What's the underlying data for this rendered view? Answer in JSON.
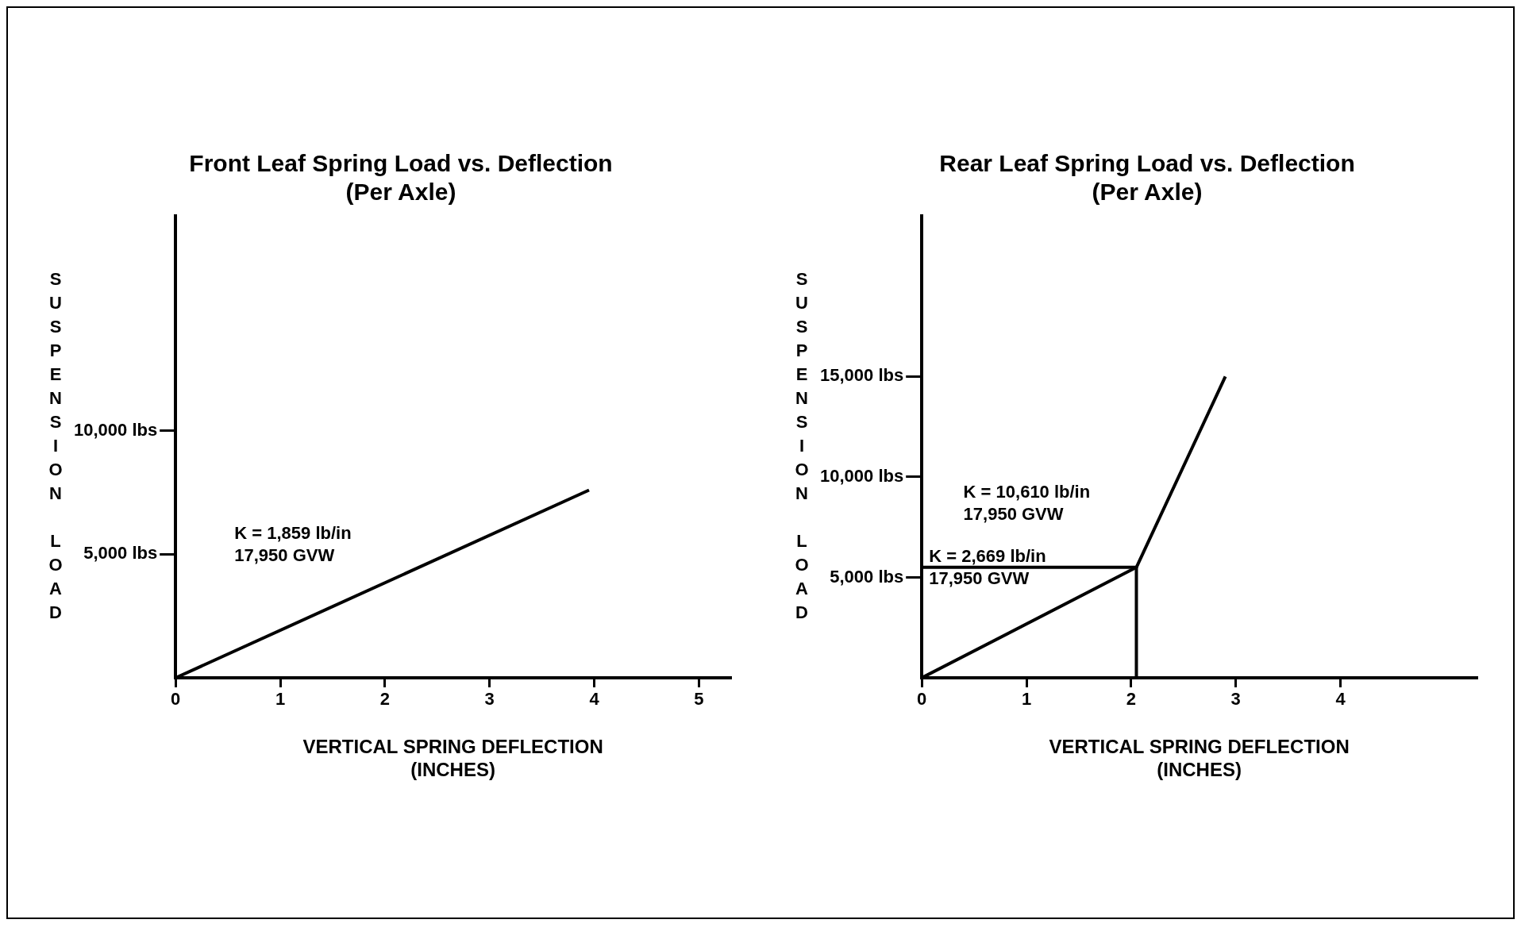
{
  "chart_data": [
    {
      "type": "line",
      "title": "Front Leaf Spring Load vs. Deflection\n(Per Axle)",
      "xlabel": "VERTICAL SPRING DEFLECTION\n(INCHES)",
      "ylabel": "SUSPENSION LOAD",
      "marker": "none",
      "line_style": "solid",
      "series": [
        {
          "x": [
            0,
            3.95
          ],
          "values": [
            0,
            7600
          ],
          "color": "#000000"
        }
      ],
      "xlim": [
        0,
        5.3
      ],
      "xticks": [
        0,
        1,
        2,
        3,
        4,
        5
      ],
      "ylim": [
        0,
        18700
      ],
      "yticks": [
        {
          "value": 5000,
          "label": "5,000 lbs"
        },
        {
          "value": 10000,
          "label": "10,000 lbs"
        }
      ],
      "annotations": [
        "K = 1,859 lb/in\n17,950 GVW"
      ]
    },
    {
      "type": "line",
      "title": "Rear Leaf Spring Load vs. Deflection\n(Per Axle)",
      "xlabel": "VERTICAL SPRING DEFLECTION\n(INCHES)",
      "ylabel": "SUSPENSION LOAD",
      "marker": "none",
      "line_style": "solid",
      "series": [
        {
          "x": [
            0,
            2.05,
            2.9
          ],
          "values": [
            0,
            5500,
            15000
          ],
          "color": "#000000"
        },
        {
          "x": [
            0,
            2.05,
            2.05
          ],
          "values": [
            5500,
            5500,
            0
          ],
          "color": "#000000"
        }
      ],
      "xlim": [
        0,
        5.3
      ],
      "xticks": [
        0,
        1,
        2,
        3,
        4
      ],
      "ylim": [
        0,
        23000
      ],
      "yticks": [
        {
          "value": 5000,
          "label": "5,000 lbs"
        },
        {
          "value": 10000,
          "label": "10,000 lbs"
        },
        {
          "value": 15000,
          "label": "15,000 lbs"
        }
      ],
      "annotations": [
        "K = 10,610 lb/in\n17,950 GVW",
        "K = 2,669 lb/in\n17,950 GVW"
      ]
    }
  ]
}
